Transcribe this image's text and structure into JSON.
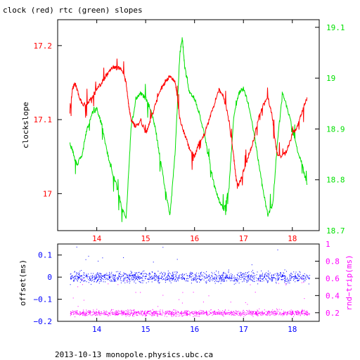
{
  "title": "clock (red) rtc (green) slopes",
  "footer": "2013-10-13 monopole.physics.ubc.ca",
  "colors": {
    "clock": "#ff0000",
    "rtc": "#00e000",
    "offset": "#0000ff",
    "rndtrip": "#ff00ff",
    "axis": "#000000"
  },
  "chart_data": [
    {
      "type": "line",
      "title": "clock (red) rtc (green) slopes",
      "xlim": [
        13.2,
        18.55
      ],
      "x_ticks": [
        "14",
        "15",
        "16",
        "17",
        "18"
      ],
      "ylabel": "clockslope",
      "ylim": [
        16.95,
        17.235
      ],
      "y_ticks": [
        "17",
        "17.1",
        "17.2"
      ],
      "y2lim": [
        18.7,
        19.115
      ],
      "y2_ticks": [
        "18.7",
        "18.8",
        "18.9",
        "19",
        "19.1"
      ],
      "series": [
        {
          "name": "clock",
          "axis": "left",
          "x": [
            13.45,
            13.5,
            13.55,
            13.6,
            13.7,
            13.8,
            13.9,
            14.0,
            14.1,
            14.2,
            14.3,
            14.4,
            14.5,
            14.6,
            14.65,
            14.7,
            14.8,
            14.9,
            15.0,
            15.1,
            15.2,
            15.3,
            15.4,
            15.5,
            15.6,
            15.65,
            15.7,
            15.8,
            15.9,
            16.0,
            16.1,
            16.2,
            16.3,
            16.4,
            16.5,
            16.6,
            16.7,
            16.8,
            16.85,
            16.9,
            17.0,
            17.1,
            17.2,
            17.3,
            17.4,
            17.5,
            17.6,
            17.65,
            17.7,
            17.8,
            17.9,
            18.0,
            18.1,
            18.2,
            18.3
          ],
          "values": [
            17.11,
            17.14,
            17.15,
            17.14,
            17.12,
            17.12,
            17.13,
            17.14,
            17.15,
            17.16,
            17.17,
            17.17,
            17.17,
            17.15,
            17.12,
            17.1,
            17.09,
            17.1,
            17.08,
            17.1,
            17.12,
            17.14,
            17.15,
            17.16,
            17.15,
            17.13,
            17.1,
            17.08,
            17.06,
            17.05,
            17.07,
            17.08,
            17.1,
            17.12,
            17.14,
            17.13,
            17.1,
            17.05,
            17.02,
            17.01,
            17.03,
            17.05,
            17.07,
            17.1,
            17.12,
            17.13,
            17.1,
            17.07,
            17.05,
            17.05,
            17.06,
            17.08,
            17.09,
            17.11,
            17.13
          ]
        },
        {
          "name": "rtc",
          "axis": "right",
          "x": [
            13.45,
            13.5,
            13.55,
            13.6,
            13.7,
            13.8,
            13.9,
            14.0,
            14.1,
            14.2,
            14.3,
            14.4,
            14.5,
            14.6,
            14.7,
            14.8,
            14.9,
            15.0,
            15.1,
            15.2,
            15.3,
            15.4,
            15.5,
            15.6,
            15.7,
            15.75,
            15.8,
            15.9,
            16.0,
            16.1,
            16.2,
            16.3,
            16.4,
            16.5,
            16.6,
            16.7,
            16.8,
            16.9,
            17.0,
            17.1,
            17.2,
            17.3,
            17.4,
            17.5,
            17.6,
            17.7,
            17.8,
            17.9,
            18.0,
            18.1,
            18.2,
            18.3
          ],
          "values": [
            18.87,
            18.86,
            18.84,
            18.83,
            18.85,
            18.9,
            18.93,
            18.94,
            18.91,
            18.86,
            18.82,
            18.79,
            18.75,
            18.72,
            18.9,
            18.96,
            18.97,
            18.96,
            18.94,
            18.9,
            18.84,
            18.78,
            18.73,
            18.85,
            19.05,
            19.08,
            19.02,
            18.97,
            18.96,
            18.93,
            18.89,
            18.84,
            18.79,
            18.76,
            18.74,
            18.78,
            18.92,
            18.97,
            18.98,
            18.95,
            18.9,
            18.84,
            18.78,
            18.73,
            18.75,
            18.88,
            18.97,
            18.94,
            18.9,
            18.86,
            18.83,
            18.79
          ]
        }
      ]
    },
    {
      "type": "scatter",
      "xlim": [
        13.2,
        18.55
      ],
      "x_ticks": [
        "14",
        "15",
        "16",
        "17",
        "18"
      ],
      "ylabel": "offset(ms)",
      "ylim": [
        -0.2,
        0.15
      ],
      "y_ticks": [
        "−0.2",
        "−0.1",
        "0",
        "0.1"
      ],
      "y2label": "rnd−trip(ms)",
      "y2lim": [
        0.1,
        1.0
      ],
      "y2_ticks": [
        "0.2",
        "0.4",
        "0.6",
        "0.8",
        "1"
      ],
      "series": [
        {
          "name": "offset",
          "axis": "left",
          "x_range": [
            13.45,
            18.35
          ],
          "center": 0.0,
          "spread": 0.015
        },
        {
          "name": "rnd-trip",
          "axis": "right",
          "x_range": [
            13.45,
            18.35
          ],
          "center": 0.2,
          "spread": 0.02
        }
      ]
    }
  ]
}
